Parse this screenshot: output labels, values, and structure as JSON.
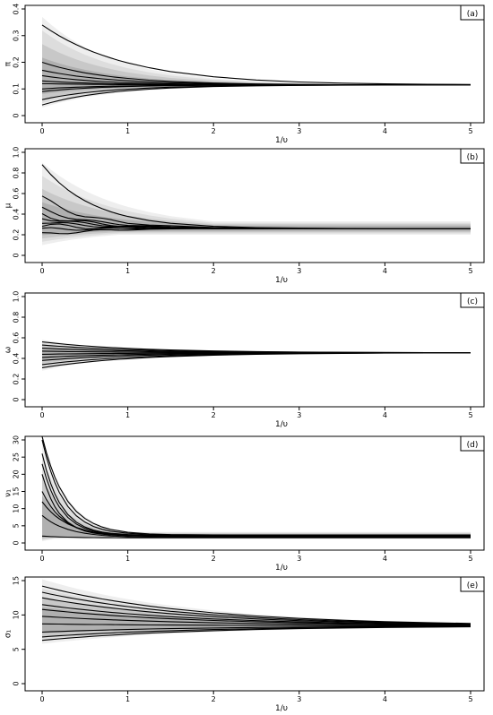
{
  "figure": {
    "x_label": "1/υ",
    "x_ticks": [
      "0",
      "1",
      "2",
      "3",
      "4",
      "5"
    ]
  },
  "chart_data": [
    {
      "panel": "(a)",
      "type": "line",
      "ylabel": "π",
      "xlim": [
        0,
        5
      ],
      "ylim": [
        0,
        0.4
      ],
      "y_ticks": [
        "0",
        "0.1",
        "0.2",
        "0.3",
        "0.4"
      ],
      "y_tick_values": [
        0,
        0.1,
        0.2,
        0.3,
        0.4
      ],
      "x": [
        0,
        0.1,
        0.2,
        0.3,
        0.4,
        0.5,
        0.6,
        0.7,
        0.8,
        0.9,
        1,
        1.25,
        1.5,
        2,
        2.5,
        3,
        3.5,
        4,
        4.5,
        5
      ],
      "band": {
        "lower": 0.03,
        "upper": 0.37,
        "converge": 0.115,
        "shape": 0.85
      },
      "series": [
        {
          "start": 0.34,
          "end": 0.115,
          "shape": 1.0,
          "bump": 0
        },
        {
          "start": 0.2,
          "end": 0.115,
          "shape": 0.8,
          "bump": 0
        },
        {
          "start": 0.17,
          "end": 0.115,
          "shape": 0.8,
          "bump": 0
        },
        {
          "start": 0.15,
          "end": 0.115,
          "shape": 0.7,
          "bump": 0
        },
        {
          "start": 0.13,
          "end": 0.115,
          "shape": 0.7,
          "bump": 0
        },
        {
          "start": 0.12,
          "end": 0.115,
          "shape": 0.7,
          "bump": 0
        },
        {
          "start": 0.1,
          "end": 0.115,
          "shape": 0.7,
          "bump": 0
        },
        {
          "start": 0.09,
          "end": 0.115,
          "shape": 0.7,
          "bump": 0
        },
        {
          "start": 0.06,
          "end": 0.115,
          "shape": 0.8,
          "bump": 0
        },
        {
          "start": 0.04,
          "end": 0.115,
          "shape": 0.8,
          "bump": 0
        }
      ]
    },
    {
      "panel": "(b)",
      "type": "line",
      "ylabel": "μ",
      "xlim": [
        0,
        5
      ],
      "ylim": [
        0,
        1.0
      ],
      "y_ticks": [
        "0",
        "0.2",
        "0.4",
        "0.6",
        "0.8",
        "1.0"
      ],
      "y_tick_values": [
        0,
        0.2,
        0.4,
        0.6,
        0.8,
        1.0
      ],
      "x": [
        0,
        0.1,
        0.2,
        0.3,
        0.4,
        0.5,
        0.6,
        0.7,
        0.8,
        0.9,
        1,
        1.25,
        1.5,
        2,
        2.5,
        3,
        3.5,
        4,
        4.5,
        5
      ],
      "band": {
        "lower": 0.1,
        "upper": 0.9,
        "converge": 0.26,
        "shape": 0.9,
        "persist_lower": 0.2,
        "persist_upper": 0.33
      },
      "series": [
        {
          "start": 0.88,
          "end": 0.26,
          "shape": 0.6,
          "bump": 0
        },
        {
          "start": 0.55,
          "end": 0.26,
          "shape": 0.6,
          "bump": 0.03
        },
        {
          "start": 0.45,
          "end": 0.26,
          "shape": 0.6,
          "bump": 0.02
        },
        {
          "start": 0.4,
          "end": 0.26,
          "shape": 0.6,
          "bump": 0.03
        },
        {
          "start": 0.37,
          "end": 0.26,
          "shape": 0.6,
          "bump": 0.02
        },
        {
          "start": 0.33,
          "end": 0.26,
          "shape": 0.6,
          "bump": 0.02
        },
        {
          "start": 0.29,
          "end": 0.26,
          "shape": 0.6,
          "bump": 0.03
        },
        {
          "start": 0.25,
          "end": 0.26,
          "shape": 0.6,
          "bump": 0.02
        },
        {
          "start": 0.2,
          "end": 0.26,
          "shape": 0.6,
          "bump": 0.02
        }
      ]
    },
    {
      "panel": "(c)",
      "type": "line",
      "ylabel": "ω",
      "xlim": [
        0,
        5
      ],
      "ylim": [
        0,
        1.0
      ],
      "y_ticks": [
        "0",
        "0.2",
        "0.4",
        "0.6",
        "0.8",
        "1.0"
      ],
      "y_tick_values": [
        0,
        0.2,
        0.4,
        0.6,
        0.8,
        1.0
      ],
      "x": [
        0,
        0.1,
        0.2,
        0.3,
        0.4,
        0.5,
        0.6,
        0.7,
        0.8,
        0.9,
        1,
        1.25,
        1.5,
        2,
        2.5,
        3,
        3.5,
        4,
        4.5,
        5
      ],
      "band": {
        "lower": 0.28,
        "upper": 0.58,
        "converge": 0.455,
        "shape": 0.9
      },
      "series": [
        {
          "start": 0.56,
          "end": 0.455,
          "shape": 1.1,
          "bump": 0
        },
        {
          "start": 0.53,
          "end": 0.455,
          "shape": 1.1,
          "bump": 0
        },
        {
          "start": 0.5,
          "end": 0.455,
          "shape": 1.1,
          "bump": 0
        },
        {
          "start": 0.47,
          "end": 0.455,
          "shape": 1.1,
          "bump": 0
        },
        {
          "start": 0.44,
          "end": 0.455,
          "shape": 1.1,
          "bump": 0
        },
        {
          "start": 0.41,
          "end": 0.455,
          "shape": 1.1,
          "bump": 0
        },
        {
          "start": 0.38,
          "end": 0.455,
          "shape": 1.1,
          "bump": 0
        },
        {
          "start": 0.34,
          "end": 0.455,
          "shape": 1.1,
          "bump": 0
        },
        {
          "start": 0.31,
          "end": 0.455,
          "shape": 1.1,
          "bump": 0
        }
      ]
    },
    {
      "panel": "(d)",
      "type": "line",
      "ylabel": "ν₁",
      "xlim": [
        0,
        5
      ],
      "ylim": [
        0,
        30
      ],
      "y_ticks": [
        "0",
        "5",
        "10",
        "15",
        "20",
        "25",
        "30"
      ],
      "y_tick_values": [
        0,
        5,
        10,
        15,
        20,
        25,
        30
      ],
      "x": [
        0,
        0.05,
        0.1,
        0.15,
        0.2,
        0.3,
        0.4,
        0.5,
        0.6,
        0.7,
        0.8,
        1,
        1.25,
        1.5,
        2,
        2.5,
        3,
        3.5,
        4,
        4.5,
        5
      ],
      "band": {
        "lower": 0.5,
        "upper": 31,
        "converge": 2.2,
        "shape": 0.3,
        "persist_lower": 1.2,
        "persist_upper": 3.2
      },
      "series": [
        {
          "start": 31,
          "end": 2.3,
          "shape": 0.28,
          "bump": 0
        },
        {
          "start": 30,
          "end": 2.3,
          "shape": 0.25,
          "bump": 0
        },
        {
          "start": 26,
          "end": 2.2,
          "shape": 0.22,
          "bump": 0
        },
        {
          "start": 23,
          "end": 2.1,
          "shape": 0.22,
          "bump": 0
        },
        {
          "start": 20,
          "end": 2.0,
          "shape": 0.2,
          "bump": 0
        },
        {
          "start": 15,
          "end": 1.9,
          "shape": 0.25,
          "bump": 0
        },
        {
          "start": 12,
          "end": 1.8,
          "shape": 0.3,
          "bump": 0
        },
        {
          "start": 8,
          "end": 1.6,
          "shape": 0.3,
          "bump": 0
        },
        {
          "start": 2,
          "end": 1.5,
          "shape": 0.3,
          "bump": 0
        }
      ]
    },
    {
      "panel": "(e)",
      "type": "line",
      "ylabel": "σ₁",
      "xlim": [
        0,
        5
      ],
      "ylim": [
        0,
        15
      ],
      "y_ticks": [
        "0",
        "5",
        "10",
        "15"
      ],
      "y_tick_values": [
        0,
        5,
        10,
        15
      ],
      "x": [
        0,
        0.1,
        0.2,
        0.3,
        0.4,
        0.5,
        0.6,
        0.7,
        0.8,
        0.9,
        1,
        1.25,
        1.5,
        2,
        2.5,
        3,
        3.5,
        4,
        4.5,
        5
      ],
      "band": {
        "lower": 5.8,
        "upper": 15.2,
        "converge": 8.4,
        "shape": 1.8
      },
      "series": [
        {
          "start": 14.2,
          "end": 8.4,
          "shape": 1.8,
          "bump": 0
        },
        {
          "start": 13.3,
          "end": 8.4,
          "shape": 1.8,
          "bump": 0
        },
        {
          "start": 12.5,
          "end": 8.4,
          "shape": 1.8,
          "bump": 0
        },
        {
          "start": 11.5,
          "end": 8.4,
          "shape": 1.8,
          "bump": 0
        },
        {
          "start": 10.8,
          "end": 8.4,
          "shape": 1.8,
          "bump": 0
        },
        {
          "start": 9.8,
          "end": 8.4,
          "shape": 1.8,
          "bump": 0
        },
        {
          "start": 8.7,
          "end": 8.4,
          "shape": 1.8,
          "bump": 0
        },
        {
          "start": 7.5,
          "end": 8.4,
          "shape": 1.8,
          "bump": 0
        },
        {
          "start": 6.8,
          "end": 8.4,
          "shape": 1.8,
          "bump": 0
        },
        {
          "start": 6.3,
          "end": 8.4,
          "shape": 1.8,
          "bump": 0
        }
      ]
    }
  ]
}
